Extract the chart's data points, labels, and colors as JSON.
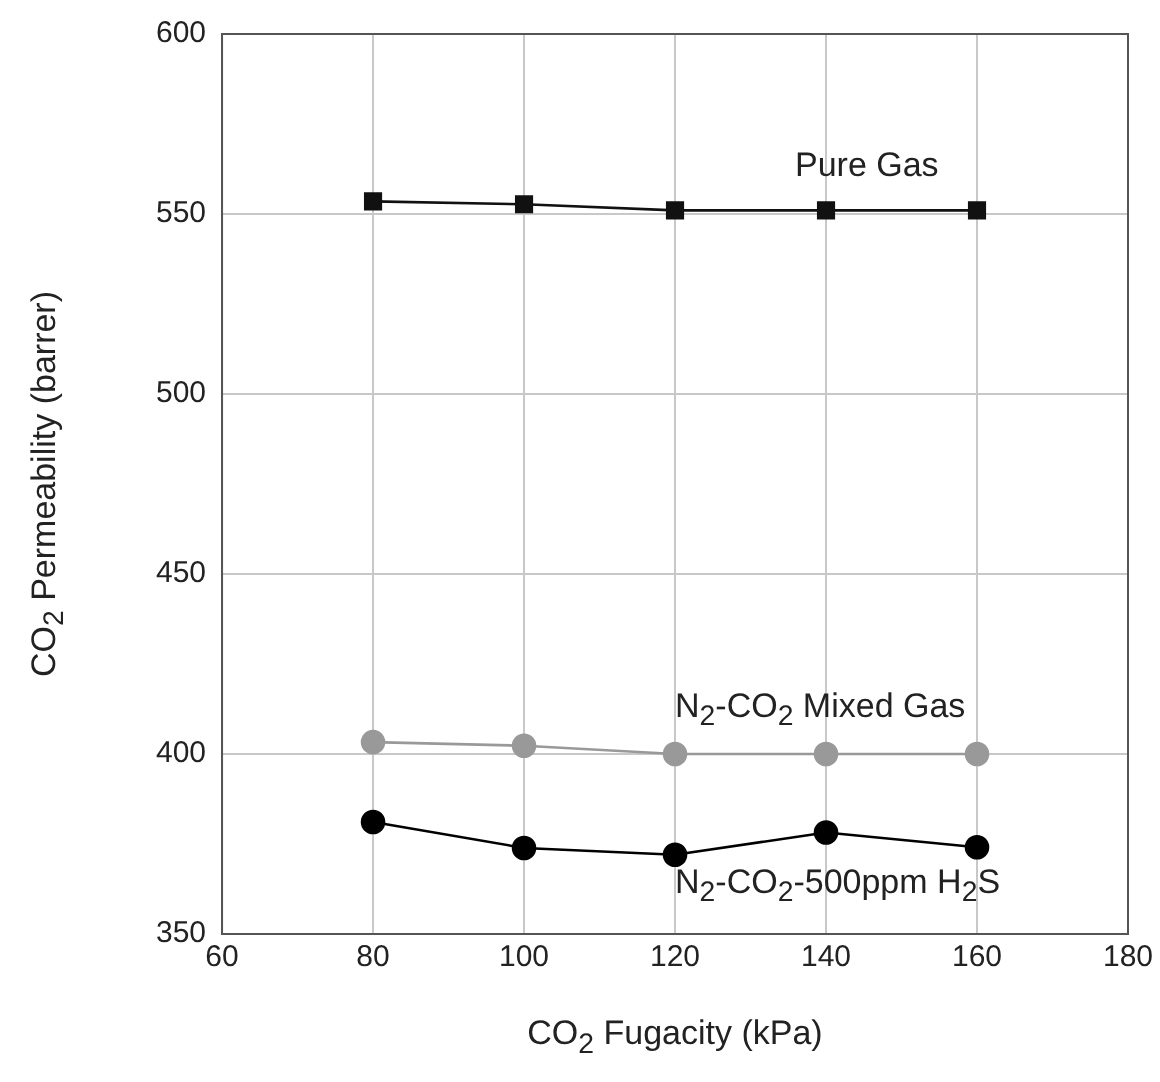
{
  "chart_data": {
    "type": "line",
    "xlabel": "CO$_{2}$ Fugacity (kPa)",
    "ylabel": "CO$_{2}$ Permeability (barrer)",
    "x": [
      80,
      100,
      120,
      140,
      160
    ],
    "series": [
      {
        "name": "Pure Gas",
        "color": "#111111",
        "marker": "square",
        "values": [
          553.5,
          552.7,
          551,
          551,
          551
        ]
      },
      {
        "name": "N$_{2}$-CO$_{2}$ Mixed Gas",
        "color": "#999999",
        "marker": "circle",
        "values": [
          403.3,
          402.3,
          400,
          400,
          400
        ]
      },
      {
        "name": "N$_{2}$-CO$_{2}$-500ppm H$_{2}$S",
        "color": "#000000",
        "marker": "circle",
        "values": [
          381.1,
          373.9,
          372,
          378.2,
          374.1
        ]
      }
    ],
    "xlim": [
      60,
      180
    ],
    "xticks": [
      60,
      80,
      100,
      120,
      140,
      160,
      180
    ],
    "ylim": [
      350,
      600
    ],
    "yticks": [
      350,
      400,
      450,
      500,
      550,
      600
    ],
    "grid": true,
    "line_style": "solid"
  }
}
